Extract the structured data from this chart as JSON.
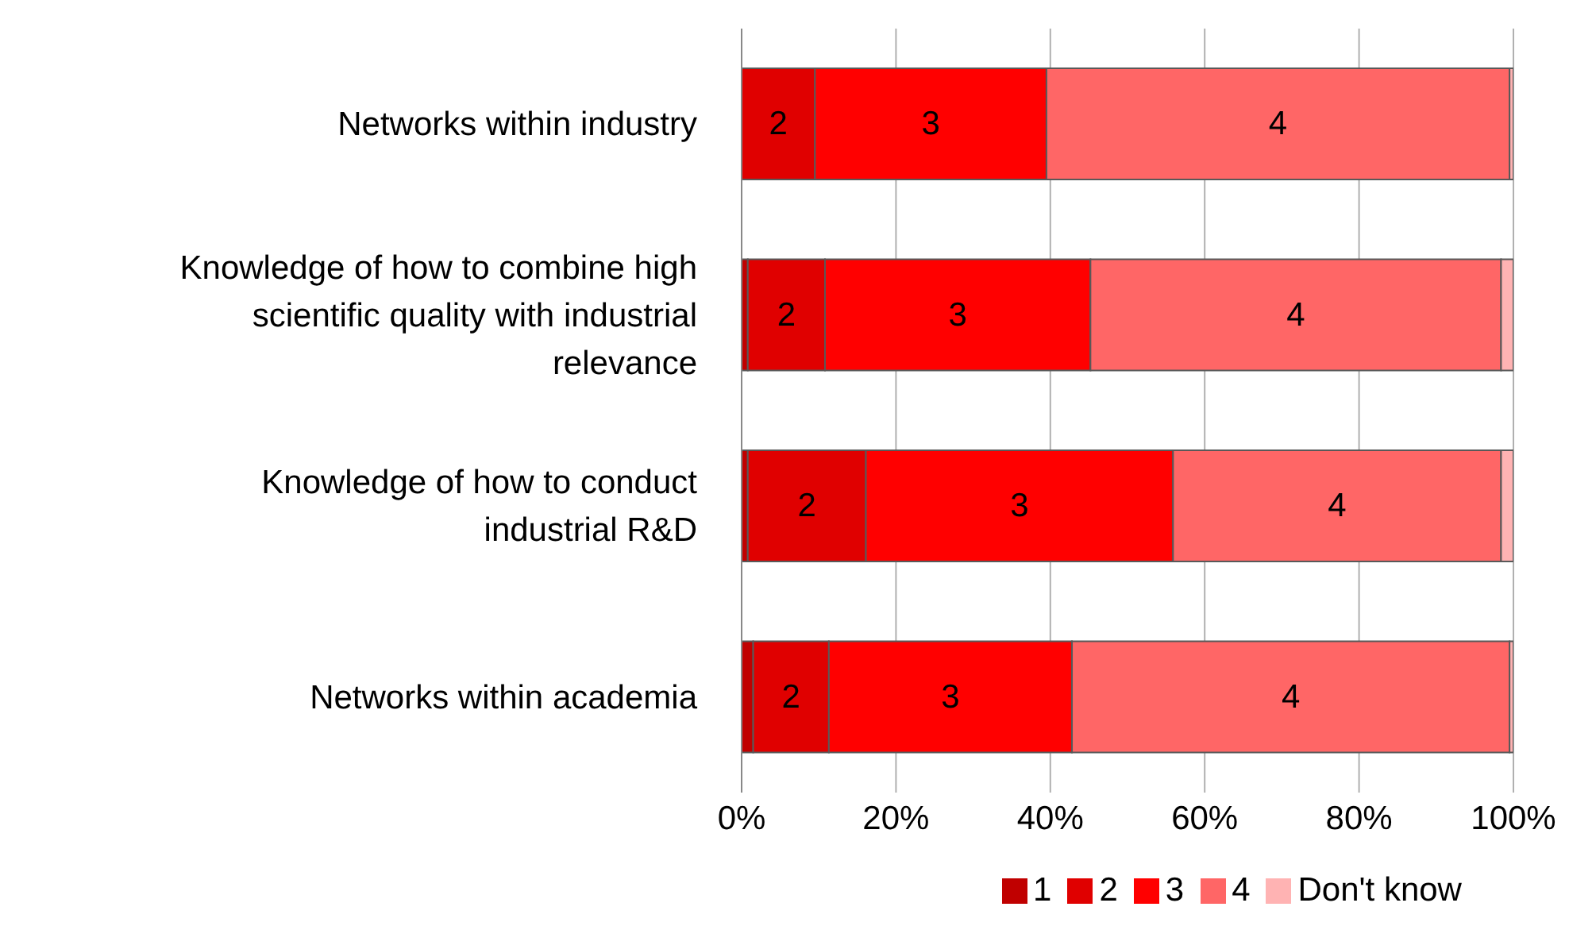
{
  "chart_data": {
    "type": "bar",
    "orientation": "horizontal",
    "stacked": true,
    "categories": [
      "Networks within industry",
      "Knowledge of how to combine high scientific quality with industrial relevance",
      "Knowledge of how to conduct industrial R&D",
      "Networks within academia"
    ],
    "series": [
      {
        "name": "1",
        "color": "#c00000",
        "values": [
          0,
          0.8,
          0.8,
          1.5
        ]
      },
      {
        "name": "2",
        "color": "#e00000",
        "values": [
          9.5,
          10,
          15.3,
          9.8
        ]
      },
      {
        "name": "3",
        "color": "#ff0000",
        "values": [
          30,
          34.4,
          39.8,
          31.5
        ]
      },
      {
        "name": "4",
        "color": "#ff6666",
        "values": [
          60,
          53.2,
          42.5,
          56.7
        ]
      },
      {
        "name": "Don't know",
        "color": "#ffb3b3",
        "values": [
          0.5,
          1.6,
          1.6,
          0.5
        ]
      }
    ],
    "xlim": [
      0,
      100
    ],
    "xticks": [
      {
        "value": 0,
        "label": "0%"
      },
      {
        "value": 20,
        "label": "20%"
      },
      {
        "value": 40,
        "label": "40%"
      },
      {
        "value": 60,
        "label": "60%"
      },
      {
        "value": 80,
        "label": "80%"
      },
      {
        "value": 100,
        "label": "100%"
      }
    ],
    "grid": "x",
    "legend": "bottom"
  }
}
